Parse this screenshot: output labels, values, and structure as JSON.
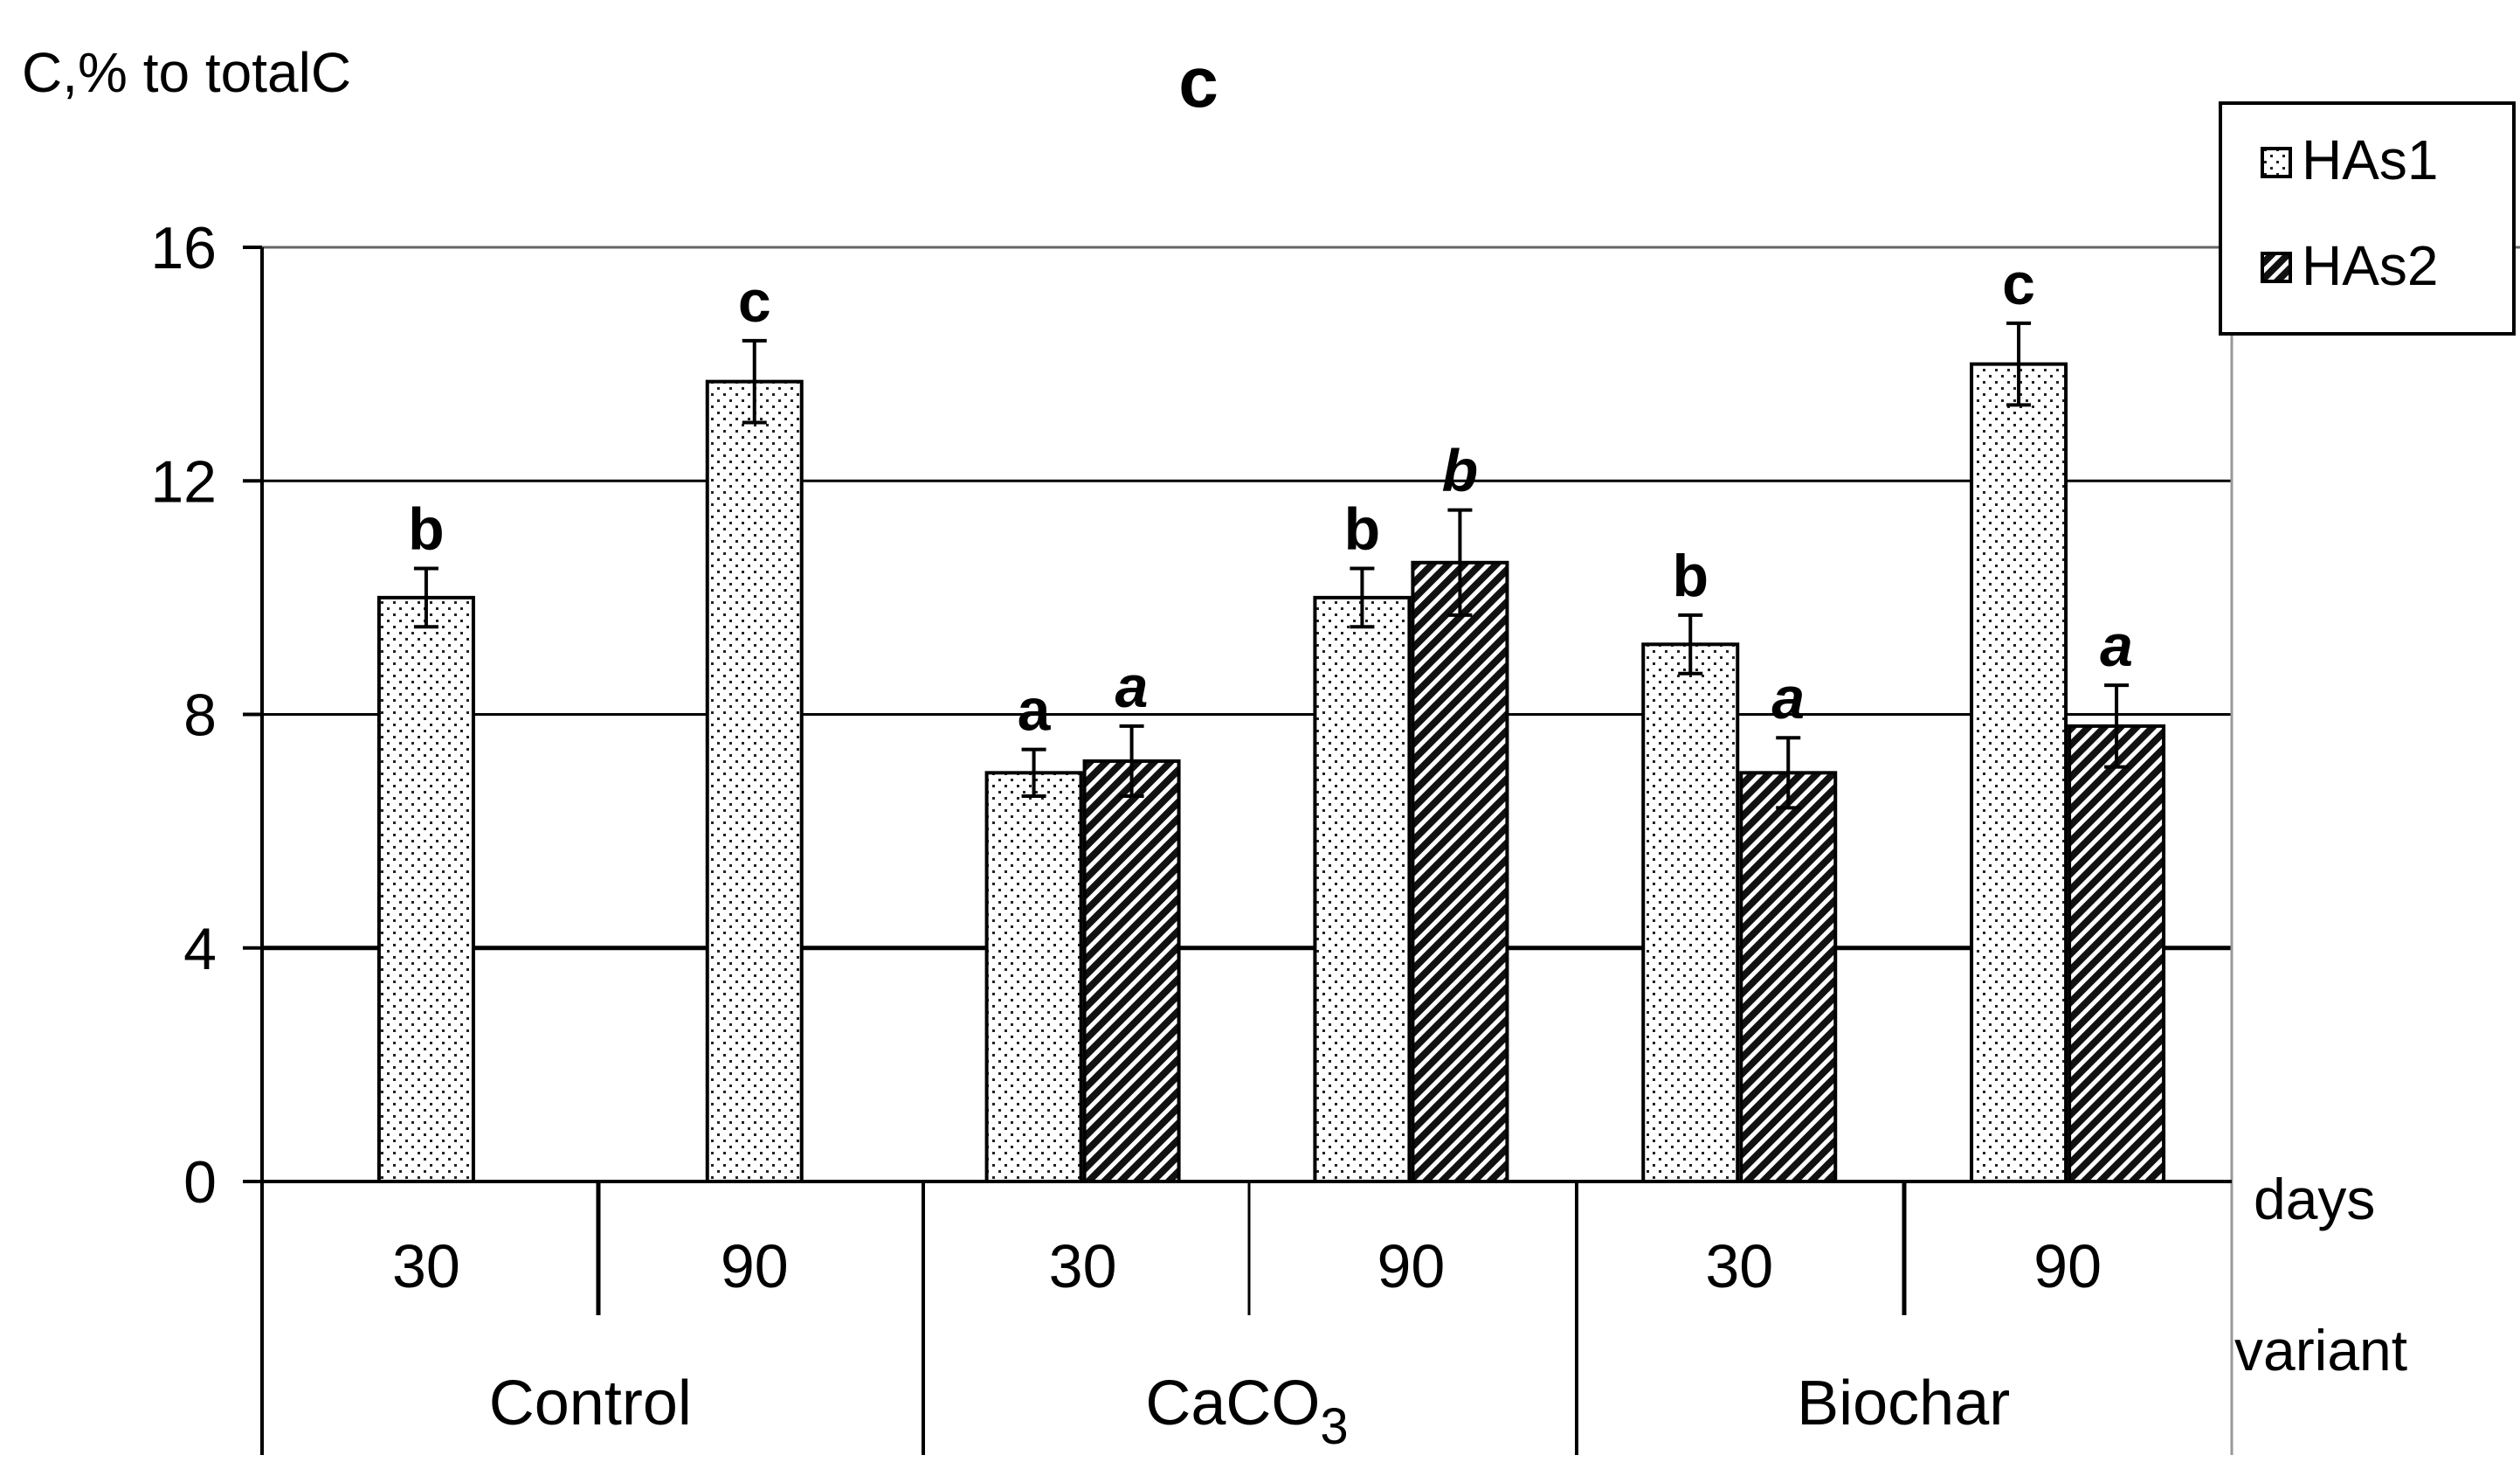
{
  "chart_data": {
    "type": "bar",
    "panel_label": "c",
    "ylabel": "C,% to totalC",
    "ylim": [
      0,
      16
    ],
    "yticks": [
      0,
      4,
      8,
      12,
      16
    ],
    "grid": true,
    "legend_position": "top-right",
    "x_row_labels": [
      "days",
      "variant"
    ],
    "groups": [
      {
        "variant": "Control",
        "days": [
          "30",
          "90"
        ]
      },
      {
        "variant": "CaCO3",
        "days": [
          "30",
          "90"
        ]
      },
      {
        "variant": "Biochar",
        "days": [
          "30",
          "90"
        ]
      }
    ],
    "categories": [
      "Control 30",
      "Control 90",
      "CaCO3 30",
      "CaCO3 90",
      "Biochar 30",
      "Biochar 90"
    ],
    "series": [
      {
        "name": "HAs1",
        "pattern": "dots",
        "values": [
          10.0,
          13.7,
          7.0,
          10.0,
          9.2,
          14.0
        ],
        "errors": [
          0.5,
          0.7,
          0.4,
          0.5,
          0.5,
          0.7
        ],
        "letters": [
          "b",
          "c",
          "a",
          "b",
          "b",
          "c"
        ],
        "italic": false
      },
      {
        "name": "HAs2",
        "pattern": "hatch",
        "values": [
          null,
          null,
          7.2,
          10.6,
          7.0,
          7.8
        ],
        "errors": [
          null,
          null,
          0.6,
          0.9,
          0.6,
          0.7
        ],
        "letters": [
          null,
          null,
          "a",
          "b",
          "a",
          "a"
        ],
        "italic": true
      }
    ]
  }
}
